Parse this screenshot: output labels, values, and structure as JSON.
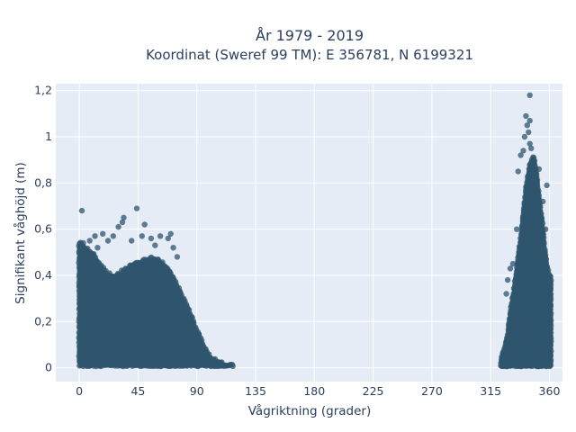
{
  "chart_data": {
    "type": "scatter",
    "title_line1": "År 1979 - 2019",
    "title_line2": "Koordinat (Sweref 99 TM): E 356781, N 6199321",
    "xlabel": "Vågriktning (grader)",
    "ylabel": "Signifikant våghöjd (m)",
    "xlim": [
      -18,
      370
    ],
    "ylim": [
      -0.06,
      1.23
    ],
    "x_ticks": [
      0,
      45,
      90,
      135,
      180,
      225,
      270,
      315,
      360
    ],
    "y_ticks": [
      0,
      0.2,
      0.4,
      0.6,
      0.8,
      1,
      1.2
    ],
    "y_tick_labels": [
      "0",
      "0,2",
      "0,4",
      "0,6",
      "0,8",
      "1",
      "1,2"
    ],
    "grid": true,
    "plot_bgcolor": "#e5ecf6",
    "marker_color": "#2f566e",
    "series": [
      {
        "clusters": [
          {
            "x_range": [
              0,
              118
            ],
            "note": "dense envelope"
          },
          {
            "x_range": [
              323,
              361
            ],
            "note": "dense envelope"
          }
        ],
        "envelope_top": [
          [
            0,
            0.55
          ],
          [
            5,
            0.52
          ],
          [
            10,
            0.5
          ],
          [
            15,
            0.46
          ],
          [
            20,
            0.42
          ],
          [
            25,
            0.4
          ],
          [
            30,
            0.41
          ],
          [
            35,
            0.43
          ],
          [
            40,
            0.45
          ],
          [
            45,
            0.46
          ],
          [
            50,
            0.47
          ],
          [
            55,
            0.48
          ],
          [
            60,
            0.47
          ],
          [
            65,
            0.45
          ],
          [
            70,
            0.42
          ],
          [
            75,
            0.36
          ],
          [
            80,
            0.3
          ],
          [
            85,
            0.24
          ],
          [
            90,
            0.17
          ],
          [
            95,
            0.1
          ],
          [
            100,
            0.05
          ],
          [
            105,
            0.03
          ],
          [
            110,
            0.02
          ],
          [
            115,
            0.01
          ],
          [
            118,
            0.01
          ]
        ],
        "envelope_top_east": [
          [
            323,
            0.04
          ],
          [
            325,
            0.08
          ],
          [
            328,
            0.15
          ],
          [
            330,
            0.25
          ],
          [
            333,
            0.35
          ],
          [
            336,
            0.48
          ],
          [
            339,
            0.62
          ],
          [
            342,
            0.78
          ],
          [
            345,
            0.88
          ],
          [
            348,
            0.92
          ],
          [
            350,
            0.85
          ],
          [
            353,
            0.7
          ],
          [
            356,
            0.55
          ],
          [
            358,
            0.45
          ],
          [
            360,
            0.4
          ]
        ],
        "outliers": [
          [
            2,
            0.68
          ],
          [
            44,
            0.69
          ],
          [
            34,
            0.65
          ],
          [
            30,
            0.61
          ],
          [
            33,
            0.63
          ],
          [
            50,
            0.62
          ],
          [
            55,
            0.56
          ],
          [
            58,
            0.53
          ],
          [
            68,
            0.56
          ],
          [
            70,
            0.58
          ],
          [
            62,
            0.57
          ],
          [
            48,
            0.57
          ],
          [
            40,
            0.55
          ],
          [
            22,
            0.55
          ],
          [
            26,
            0.57
          ],
          [
            18,
            0.58
          ],
          [
            12,
            0.57
          ],
          [
            8,
            0.55
          ],
          [
            72,
            0.52
          ],
          [
            75,
            0.48
          ],
          [
            14,
            0.52
          ],
          [
            3,
            0.54
          ],
          [
            345,
            1.18
          ],
          [
            342,
            1.09
          ],
          [
            345,
            1.07
          ],
          [
            343,
            1.05
          ],
          [
            341,
            1.0
          ],
          [
            344,
            1.02
          ],
          [
            338,
            0.92
          ],
          [
            340,
            0.94
          ],
          [
            346,
            0.95
          ],
          [
            336,
            0.85
          ],
          [
            352,
            0.86
          ],
          [
            348,
            0.89
          ],
          [
            350,
            0.79
          ],
          [
            355,
            0.72
          ],
          [
            358,
            0.79
          ],
          [
            354,
            0.65
          ],
          [
            357,
            0.6
          ],
          [
            353,
            0.62
          ],
          [
            330,
            0.43
          ],
          [
            328,
            0.38
          ],
          [
            327,
            0.32
          ],
          [
            332,
            0.45
          ],
          [
            335,
            0.6
          ],
          [
            345,
            0.97
          ]
        ]
      }
    ]
  }
}
